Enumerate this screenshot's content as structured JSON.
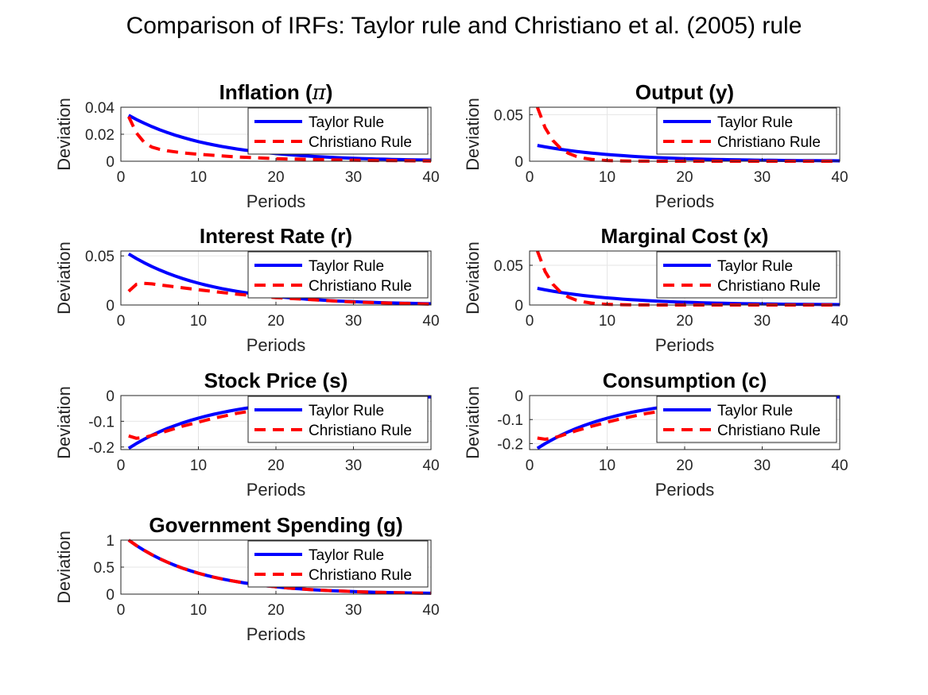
{
  "title": "Comparison of IRFs: Taylor rule and Christiano et al. (2005) rule",
  "chart_data": [
    {
      "type": "line",
      "title": "Inflation (π)",
      "title_main": "Inflation (",
      "title_sym": "π",
      "title_end": ")",
      "xlabel": "Periods",
      "ylabel": "Deviation",
      "xlim": [
        0,
        40
      ],
      "ylim": [
        0,
        0.04
      ],
      "xticks": [
        0,
        10,
        20,
        30,
        40
      ],
      "yticks": [
        0,
        0.02,
        0.04
      ],
      "legend_position": "top-right",
      "grid": true,
      "series": [
        {
          "name": "Taylor Rule",
          "color": "#0000ff",
          "style": "solid",
          "start": 0.034,
          "rate": 0.91
        },
        {
          "name": "Christiano Rule",
          "color": "#ff0000",
          "style": "dashed",
          "x": [
            1,
            2,
            3,
            4,
            5,
            6,
            8,
            10,
            15,
            20,
            30,
            40
          ],
          "y": [
            0.033,
            0.021,
            0.014,
            0.0105,
            0.0088,
            0.0077,
            0.0062,
            0.0052,
            0.0032,
            0.0019,
            0.0007,
            0.0002
          ]
        }
      ]
    },
    {
      "type": "line",
      "title": "Output (y)",
      "xlabel": "Periods",
      "ylabel": "Deviation",
      "xlim": [
        0,
        40
      ],
      "ylim": [
        0,
        0.058
      ],
      "xticks": [
        0,
        10,
        20,
        30,
        40
      ],
      "yticks": [
        0,
        0.05
      ],
      "legend_position": "top-right",
      "grid": true,
      "series": [
        {
          "name": "Taylor Rule",
          "color": "#0000ff",
          "style": "solid",
          "start": 0.017,
          "rate": 0.91
        },
        {
          "name": "Christiano Rule",
          "color": "#ff0000",
          "style": "dashed",
          "start": 0.058,
          "rate": 0.62
        }
      ]
    },
    {
      "type": "line",
      "title": "Interest Rate (r)",
      "xlabel": "Periods",
      "ylabel": "Deviation",
      "xlim": [
        0,
        40
      ],
      "ylim": [
        0,
        0.055
      ],
      "xticks": [
        0,
        10,
        20,
        30,
        40
      ],
      "yticks": [
        0,
        0.05
      ],
      "legend_position": "top-right",
      "grid": true,
      "series": [
        {
          "name": "Taylor Rule",
          "color": "#0000ff",
          "style": "solid",
          "start": 0.052,
          "rate": 0.91
        },
        {
          "name": "Christiano Rule",
          "color": "#ff0000",
          "style": "dashed",
          "x": [
            1,
            2,
            3,
            4,
            5,
            6,
            8,
            10,
            15,
            20,
            30,
            40
          ],
          "y": [
            0.014,
            0.021,
            0.022,
            0.0215,
            0.0205,
            0.0195,
            0.0175,
            0.0155,
            0.011,
            0.0075,
            0.003,
            0.0008
          ]
        }
      ]
    },
    {
      "type": "line",
      "title": "Marginal Cost (x)",
      "xlabel": "Periods",
      "ylabel": "Deviation",
      "xlim": [
        0,
        40
      ],
      "ylim": [
        0,
        0.068
      ],
      "xticks": [
        0,
        10,
        20,
        30,
        40
      ],
      "yticks": [
        0,
        0.05
      ],
      "legend_position": "top-right",
      "grid": true,
      "series": [
        {
          "name": "Taylor Rule",
          "color": "#0000ff",
          "style": "solid",
          "start": 0.021,
          "rate": 0.91
        },
        {
          "name": "Christiano Rule",
          "color": "#ff0000",
          "style": "dashed",
          "start": 0.068,
          "rate": 0.62
        }
      ]
    },
    {
      "type": "line",
      "title": "Stock Price (s)",
      "xlabel": "Periods",
      "ylabel": "Deviation",
      "xlim": [
        0,
        40
      ],
      "ylim": [
        -0.21,
        0
      ],
      "xticks": [
        0,
        10,
        20,
        30,
        40
      ],
      "yticks": [
        -0.2,
        -0.1,
        0
      ],
      "legend_position": "top-right",
      "grid": true,
      "series": [
        {
          "name": "Taylor Rule",
          "color": "#0000ff",
          "style": "solid",
          "start": -0.205,
          "rate": 0.91
        },
        {
          "name": "Christiano Rule",
          "color": "#ff0000",
          "style": "dashed",
          "x": [
            1,
            2,
            3,
            4,
            5,
            6,
            8,
            10,
            12,
            15,
            20,
            25,
            30,
            35,
            40
          ],
          "y": [
            -0.157,
            -0.166,
            -0.163,
            -0.155,
            -0.146,
            -0.137,
            -0.119,
            -0.103,
            -0.088,
            -0.069,
            -0.045,
            -0.029,
            -0.018,
            -0.011,
            -0.006
          ]
        }
      ]
    },
    {
      "type": "line",
      "title": "Consumption (c)",
      "xlabel": "Periods",
      "ylabel": "Deviation",
      "xlim": [
        0,
        40
      ],
      "ylim": [
        -0.225,
        0
      ],
      "xticks": [
        0,
        10,
        20,
        30,
        40
      ],
      "yticks": [
        -0.2,
        -0.1,
        0
      ],
      "legend_position": "top-right",
      "grid": true,
      "series": [
        {
          "name": "Taylor Rule",
          "color": "#0000ff",
          "style": "solid",
          "start": -0.22,
          "rate": 0.91
        },
        {
          "name": "Christiano Rule",
          "color": "#ff0000",
          "style": "dashed",
          "x": [
            1,
            2,
            3,
            4,
            5,
            6,
            8,
            10,
            12,
            15,
            20,
            25,
            30,
            35,
            40
          ],
          "y": [
            -0.177,
            -0.182,
            -0.177,
            -0.168,
            -0.157,
            -0.147,
            -0.128,
            -0.111,
            -0.095,
            -0.075,
            -0.049,
            -0.031,
            -0.019,
            -0.012,
            -0.007
          ]
        }
      ]
    },
    {
      "type": "line",
      "title": "Government Spending (g)",
      "xlabel": "Periods",
      "ylabel": "Deviation",
      "xlim": [
        0,
        40
      ],
      "ylim": [
        0,
        1
      ],
      "xticks": [
        0,
        10,
        20,
        30,
        40
      ],
      "yticks": [
        0,
        0.5,
        1
      ],
      "legend_position": "top-right",
      "grid": true,
      "series": [
        {
          "name": "Taylor Rule",
          "color": "#0000ff",
          "style": "solid",
          "start": 1.0,
          "rate": 0.9
        },
        {
          "name": "Christiano Rule",
          "color": "#ff0000",
          "style": "dashed",
          "start": 1.0,
          "rate": 0.9
        }
      ]
    }
  ]
}
